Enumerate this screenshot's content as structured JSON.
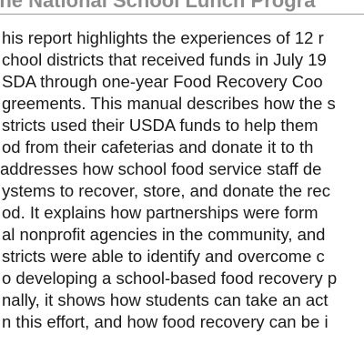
{
  "heading": "the National School Lunch Progra",
  "paragraph_lines": [
    "his report highlights the experiences of 12 r",
    "chool districts that received funds in July 19",
    "SDA through one-year Food Recovery Coo",
    "greements. This manual describes how the s",
    "stricts used their USDA funds to help them",
    "od from their cafeterias and donate it to th",
    " addresses how school food service staff de",
    "ystems to recover, store, and donate the rec",
    "od. It explains how partnerships were form",
    "al nonprofit agencies in the community, and",
    "stricts were able to identify and overcome c",
    "o developing a school-based food recovery p",
    "nally, it shows how students can take an act",
    "n this effort, and how food recovery can be i"
  ]
}
